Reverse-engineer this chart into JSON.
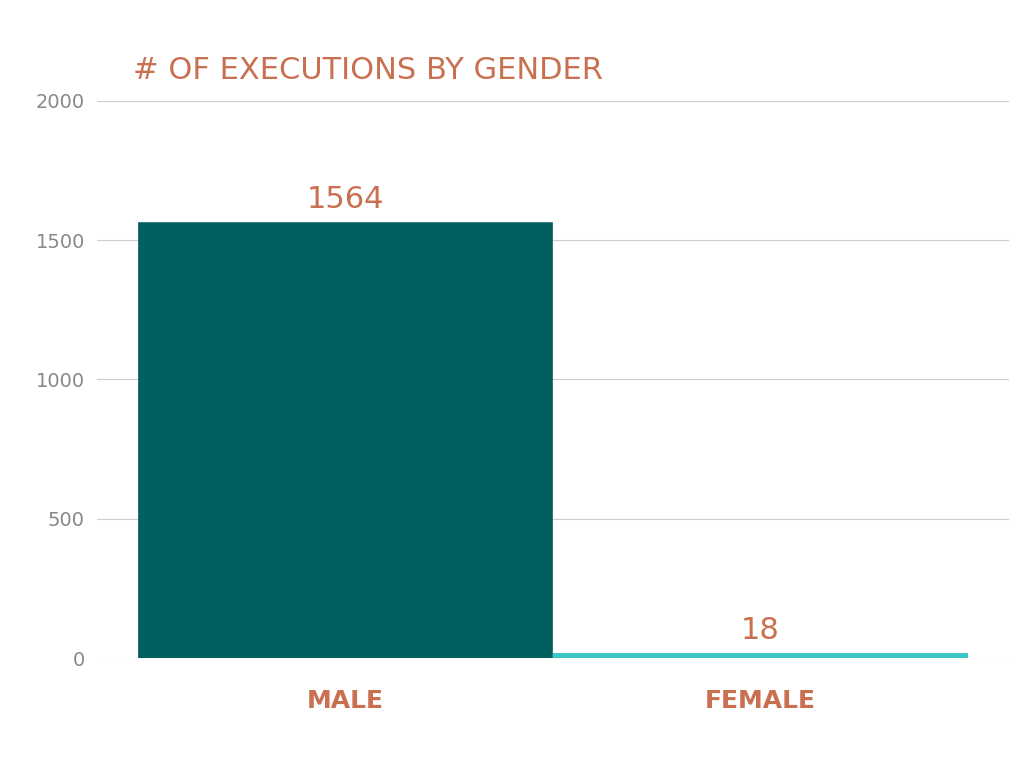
{
  "categories": [
    "MALE",
    "FEMALE"
  ],
  "values": [
    1564,
    18
  ],
  "bar_colors": [
    "#006060",
    "#3CC8C8"
  ],
  "title": "# OF EXECUTIONS BY GENDER",
  "title_color": "#C87050",
  "title_fontsize": 22,
  "label_color": "#C87050",
  "label_fontsize": 18,
  "value_label_fontsize": 22,
  "tick_color": "#888888",
  "tick_fontsize": 14,
  "ylim": [
    0,
    2000
  ],
  "yticks": [
    0,
    500,
    1000,
    1500,
    2000
  ],
  "background_color": "#FFFFFF",
  "grid_color": "#CCCCCC",
  "bar_width": 0.5
}
